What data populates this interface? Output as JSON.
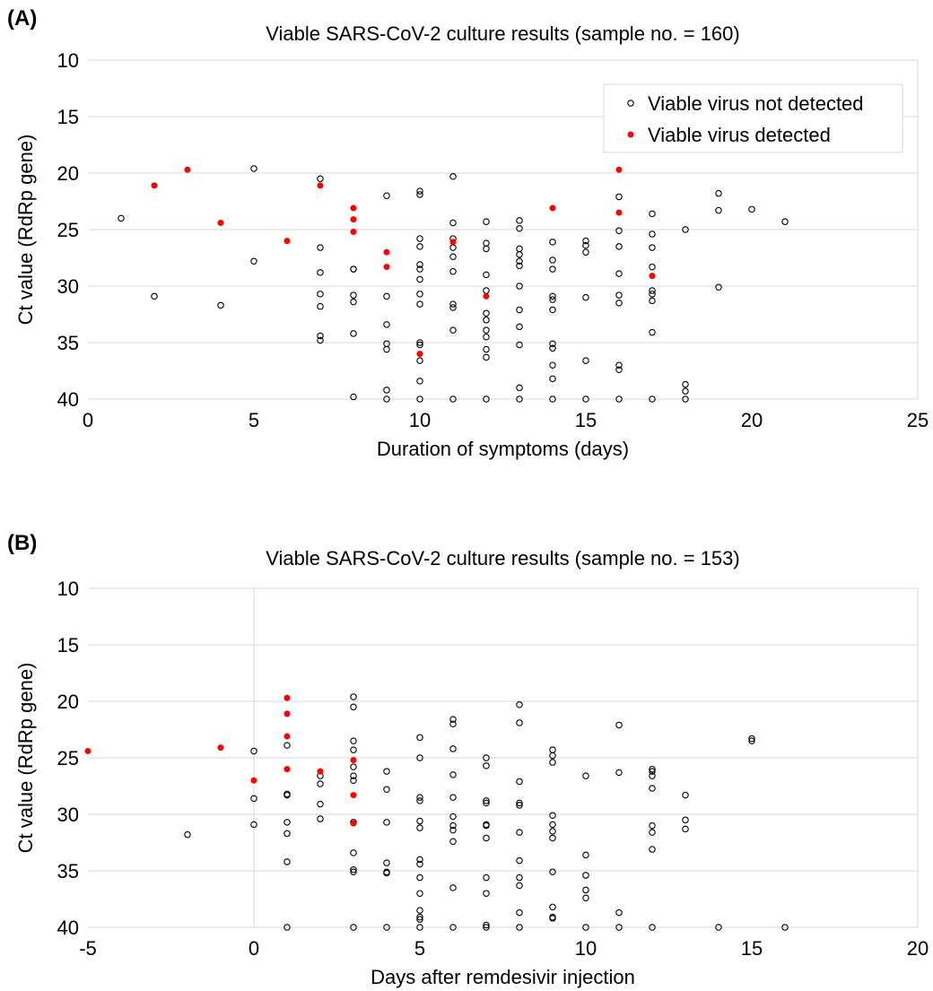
{
  "chart_data": [
    {
      "type": "scatter",
      "panel_label": "(A)",
      "title": "Viable SARS-CoV-2 culture results (sample no. = 160)",
      "xlabel": "Duration of symptoms (days)",
      "ylabel": "Ct value (RdRp gene)",
      "xlim": [
        0,
        25
      ],
      "ylim": [
        10,
        40
      ],
      "y_inverted": true,
      "xticks": [
        "0",
        "5",
        "10",
        "15",
        "20",
        "25"
      ],
      "yticks": [
        "10",
        "15",
        "20",
        "25",
        "30",
        "35",
        "40"
      ],
      "grid": "horizontal",
      "legend_position": "top-right",
      "series": [
        {
          "name": "Viable virus not detected",
          "marker": "open-circle",
          "color": "#000000",
          "points": [
            [
              1,
              24.0
            ],
            [
              2,
              30.9
            ],
            [
              4,
              31.7
            ],
            [
              5,
              19.6
            ],
            [
              5,
              27.8
            ],
            [
              7,
              20.5
            ],
            [
              7,
              26.6
            ],
            [
              7,
              28.8
            ],
            [
              7,
              30.7
            ],
            [
              7,
              31.8
            ],
            [
              7,
              34.4
            ],
            [
              7,
              34.8
            ],
            [
              8,
              28.5
            ],
            [
              8,
              28.5
            ],
            [
              8,
              30.8
            ],
            [
              8,
              31.4
            ],
            [
              8,
              34.2
            ],
            [
              8,
              39.8
            ],
            [
              9,
              22.0
            ],
            [
              9,
              30.9
            ],
            [
              9,
              33.4
            ],
            [
              9,
              35.1
            ],
            [
              9,
              35.6
            ],
            [
              9,
              39.2
            ],
            [
              9,
              40.0
            ],
            [
              10,
              21.6
            ],
            [
              10,
              21.9
            ],
            [
              10,
              25.8
            ],
            [
              10,
              26.5
            ],
            [
              10,
              28.1
            ],
            [
              10,
              28.5
            ],
            [
              10,
              29.4
            ],
            [
              10,
              30.7
            ],
            [
              10,
              31.6
            ],
            [
              10,
              35.0
            ],
            [
              10,
              35.2
            ],
            [
              10,
              36.6
            ],
            [
              10,
              38.4
            ],
            [
              10,
              40.0
            ],
            [
              11,
              20.3
            ],
            [
              11,
              24.4
            ],
            [
              11,
              25.8
            ],
            [
              11,
              26.6
            ],
            [
              11,
              27.4
            ],
            [
              11,
              28.7
            ],
            [
              11,
              31.6
            ],
            [
              11,
              31.9
            ],
            [
              11,
              33.9
            ],
            [
              11,
              40.0
            ],
            [
              12,
              24.3
            ],
            [
              12,
              26.2
            ],
            [
              12,
              26.7
            ],
            [
              12,
              29.0
            ],
            [
              12,
              30.4
            ],
            [
              12,
              32.4
            ],
            [
              12,
              33.0
            ],
            [
              12,
              33.9
            ],
            [
              12,
              34.5
            ],
            [
              12,
              35.6
            ],
            [
              12,
              36.3
            ],
            [
              12,
              40.0
            ],
            [
              13,
              24.2
            ],
            [
              13,
              24.9
            ],
            [
              13,
              26.7
            ],
            [
              13,
              27.2
            ],
            [
              13,
              27.8
            ],
            [
              13,
              28.2
            ],
            [
              13,
              30.0
            ],
            [
              13,
              32.1
            ],
            [
              13,
              33.6
            ],
            [
              13,
              35.2
            ],
            [
              13,
              39.0
            ],
            [
              13,
              40.0
            ],
            [
              14,
              26.1
            ],
            [
              14,
              27.7
            ],
            [
              14,
              28.5
            ],
            [
              14,
              30.9
            ],
            [
              14,
              31.2
            ],
            [
              14,
              32.1
            ],
            [
              14,
              35.1
            ],
            [
              14,
              35.5
            ],
            [
              14,
              37.0
            ],
            [
              14,
              38.2
            ],
            [
              14,
              40.0
            ],
            [
              15,
              26.0
            ],
            [
              15,
              26.4
            ],
            [
              15,
              27.0
            ],
            [
              15,
              31.0
            ],
            [
              15,
              36.6
            ],
            [
              15,
              40.0
            ],
            [
              16,
              22.1
            ],
            [
              16,
              25.1
            ],
            [
              16,
              26.5
            ],
            [
              16,
              28.9
            ],
            [
              16,
              30.8
            ],
            [
              16,
              31.5
            ],
            [
              16,
              37.0
            ],
            [
              16,
              37.4
            ],
            [
              16,
              40.0
            ],
            [
              17,
              23.6
            ],
            [
              17,
              25.4
            ],
            [
              17,
              26.6
            ],
            [
              17,
              28.3
            ],
            [
              17,
              30.4
            ],
            [
              17,
              30.7
            ],
            [
              17,
              31.3
            ],
            [
              17,
              34.1
            ],
            [
              17,
              40.0
            ],
            [
              18,
              25.0
            ],
            [
              18,
              38.7
            ],
            [
              18,
              39.3
            ],
            [
              18,
              40.0
            ],
            [
              19,
              21.8
            ],
            [
              19,
              23.3
            ],
            [
              19,
              30.1
            ],
            [
              20,
              23.2
            ],
            [
              21,
              24.3
            ]
          ]
        },
        {
          "name": "Viable virus detected",
          "marker": "filled-circle",
          "color": "#ff0000",
          "points": [
            [
              2,
              21.1
            ],
            [
              3,
              19.7
            ],
            [
              4,
              24.4
            ],
            [
              6,
              26.0
            ],
            [
              7,
              21.1
            ],
            [
              8,
              23.1
            ],
            [
              8,
              24.1
            ],
            [
              8,
              25.2
            ],
            [
              9,
              27.0
            ],
            [
              9,
              28.3
            ],
            [
              10,
              36.0
            ],
            [
              11,
              26.1
            ],
            [
              12,
              30.9
            ],
            [
              14,
              23.1
            ],
            [
              16,
              19.7
            ],
            [
              16,
              23.5
            ],
            [
              17,
              29.1
            ]
          ]
        }
      ]
    },
    {
      "type": "scatter",
      "panel_label": "(B)",
      "title": "Viable SARS-CoV-2 culture results (sample no. = 153)",
      "xlabel": "Days after remdesivir injection",
      "ylabel": "Ct value (RdRp gene)",
      "xlim": [
        -5,
        20
      ],
      "ylim": [
        10,
        40
      ],
      "y_inverted": true,
      "xticks": [
        "-5",
        "0",
        "5",
        "10",
        "15",
        "20"
      ],
      "yticks": [
        "10",
        "15",
        "20",
        "25",
        "30",
        "35",
        "40"
      ],
      "grid": "horizontal",
      "vertical_reference_x": 0,
      "series": [
        {
          "name": "Viable virus not detected",
          "marker": "open-circle",
          "color": "#000000",
          "points": [
            [
              -2,
              31.8
            ],
            [
              0,
              24.4
            ],
            [
              0,
              28.6
            ],
            [
              0,
              30.9
            ],
            [
              1,
              23.9
            ],
            [
              1,
              28.2
            ],
            [
              1,
              28.3
            ],
            [
              1,
              30.7
            ],
            [
              1,
              31.7
            ],
            [
              1,
              34.2
            ],
            [
              1,
              40.0
            ],
            [
              2,
              26.6
            ],
            [
              2,
              27.3
            ],
            [
              2,
              29.1
            ],
            [
              2,
              30.4
            ],
            [
              3,
              19.6
            ],
            [
              3,
              20.5
            ],
            [
              3,
              23.5
            ],
            [
              3,
              24.3
            ],
            [
              3,
              25.8
            ],
            [
              3,
              26.6
            ],
            [
              3,
              27.0
            ],
            [
              3,
              30.7
            ],
            [
              3,
              33.4
            ],
            [
              3,
              34.9
            ],
            [
              3,
              35.1
            ],
            [
              3,
              40.0
            ],
            [
              4,
              26.2
            ],
            [
              4,
              27.8
            ],
            [
              4,
              30.7
            ],
            [
              4,
              34.3
            ],
            [
              4,
              35.1
            ],
            [
              4,
              35.2
            ],
            [
              4,
              40.0
            ],
            [
              5,
              23.2
            ],
            [
              5,
              25.0
            ],
            [
              5,
              28.5
            ],
            [
              5,
              28.8
            ],
            [
              5,
              30.6
            ],
            [
              5,
              31.2
            ],
            [
              5,
              34.0
            ],
            [
              5,
              34.4
            ],
            [
              5,
              35.6
            ],
            [
              5,
              37.0
            ],
            [
              5,
              38.5
            ],
            [
              5,
              39.1
            ],
            [
              5,
              39.3
            ],
            [
              5,
              40.0
            ],
            [
              6,
              21.6
            ],
            [
              6,
              22.0
            ],
            [
              6,
              24.2
            ],
            [
              6,
              26.5
            ],
            [
              6,
              28.5
            ],
            [
              6,
              30.2
            ],
            [
              6,
              31.0
            ],
            [
              6,
              31.4
            ],
            [
              6,
              32.4
            ],
            [
              6,
              36.5
            ],
            [
              6,
              40.0
            ],
            [
              7,
              25.0
            ],
            [
              7,
              25.7
            ],
            [
              7,
              28.8
            ],
            [
              7,
              29.0
            ],
            [
              7,
              30.9
            ],
            [
              7,
              31.0
            ],
            [
              7,
              32.1
            ],
            [
              7,
              35.6
            ],
            [
              7,
              37.0
            ],
            [
              7,
              39.8
            ],
            [
              7,
              40.0
            ],
            [
              8,
              20.3
            ],
            [
              8,
              21.9
            ],
            [
              8,
              27.1
            ],
            [
              8,
              29.0
            ],
            [
              8,
              29.2
            ],
            [
              8,
              31.6
            ],
            [
              8,
              34.1
            ],
            [
              8,
              35.6
            ],
            [
              8,
              36.3
            ],
            [
              8,
              38.7
            ],
            [
              8,
              40.0
            ],
            [
              9,
              24.3
            ],
            [
              9,
              24.8
            ],
            [
              9,
              25.4
            ],
            [
              9,
              30.1
            ],
            [
              9,
              30.9
            ],
            [
              9,
              31.5
            ],
            [
              9,
              32.1
            ],
            [
              9,
              35.1
            ],
            [
              9,
              38.2
            ],
            [
              9,
              39.1
            ],
            [
              9,
              39.2
            ],
            [
              10,
              26.6
            ],
            [
              10,
              33.6
            ],
            [
              10,
              35.4
            ],
            [
              10,
              36.7
            ],
            [
              10,
              37.4
            ],
            [
              10,
              40.0
            ],
            [
              11,
              22.1
            ],
            [
              11,
              26.3
            ],
            [
              11,
              38.7
            ],
            [
              11,
              40.0
            ],
            [
              12,
              26.0
            ],
            [
              12,
              26.2
            ],
            [
              12,
              26.6
            ],
            [
              12,
              27.7
            ],
            [
              12,
              31.0
            ],
            [
              12,
              31.6
            ],
            [
              12,
              33.1
            ],
            [
              12,
              40.0
            ],
            [
              13,
              28.3
            ],
            [
              13,
              30.5
            ],
            [
              13,
              31.3
            ],
            [
              14,
              40.0
            ],
            [
              15,
              23.3
            ],
            [
              15,
              23.5
            ],
            [
              16,
              40.0
            ]
          ]
        },
        {
          "name": "Viable virus detected",
          "marker": "filled-circle",
          "color": "#ff0000",
          "points": [
            [
              -5,
              24.4
            ],
            [
              -1,
              24.1
            ],
            [
              0,
              27.0
            ],
            [
              1,
              19.7
            ],
            [
              1,
              21.1
            ],
            [
              1,
              23.1
            ],
            [
              1,
              26.0
            ],
            [
              2,
              26.2
            ],
            [
              3,
              25.2
            ],
            [
              3,
              28.3
            ],
            [
              3,
              30.8
            ]
          ]
        }
      ]
    }
  ]
}
